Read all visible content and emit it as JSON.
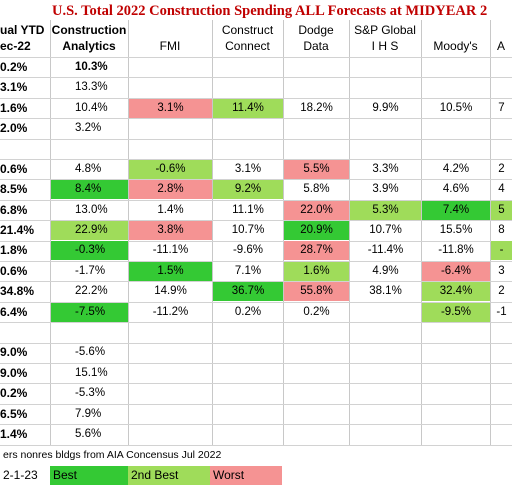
{
  "title": "U.S. Total 2022 Construction Spending ALL Forecasts at MIDYEAR 2",
  "headers": {
    "c0": [
      "ual YTD",
      "ec-22"
    ],
    "c1": [
      "Construction",
      "Analytics"
    ],
    "c2": [
      "",
      "FMI"
    ],
    "c3": [
      "Construct",
      "Connect"
    ],
    "c4": [
      "Dodge",
      "Data"
    ],
    "c5": [
      "S&P Global",
      "I H S"
    ],
    "c6": [
      "",
      "Moody's"
    ],
    "c7": [
      "",
      "A"
    ]
  },
  "rows": [
    {
      "c0": "0.2%",
      "c1": "10.3%",
      "c1bold": true,
      "cells": [
        "",
        "",
        "",
        "",
        "",
        ""
      ]
    },
    {
      "c0": "3.1%",
      "c1": "13.3%",
      "c1bold": false,
      "cells": [
        "",
        "",
        "",
        "",
        "",
        ""
      ]
    },
    {
      "c0": "1.6%",
      "c1": "10.4%",
      "c1bold": false,
      "cells": [
        "3.1%",
        "11.4%",
        "18.2%",
        "9.9%",
        "10.5%",
        "7"
      ],
      "hl": [
        "worst",
        "second",
        "",
        "",
        "",
        ""
      ]
    },
    {
      "c0": "2.0%",
      "c1": "3.2%",
      "c1bold": false,
      "cells": [
        "",
        "",
        "",
        "",
        "",
        ""
      ]
    },
    {
      "c0": "",
      "c1": "",
      "c1bold": false,
      "cells": [
        "",
        "",
        "",
        "",
        "",
        ""
      ]
    },
    {
      "c0": "0.6%",
      "c1": "4.8%",
      "c1bold": false,
      "cells": [
        "-0.6%",
        "3.1%",
        "5.5%",
        "3.3%",
        "4.2%",
        "2"
      ],
      "hl": [
        "second",
        "",
        "worst",
        "",
        "",
        ""
      ]
    },
    {
      "c0": "8.5%",
      "c1": "8.4%",
      "c1bold": false,
      "hl1": "best",
      "cells": [
        "2.8%",
        "9.2%",
        "5.8%",
        "3.9%",
        "4.6%",
        "4"
      ],
      "hl": [
        "worst",
        "second",
        "",
        "",
        "",
        ""
      ]
    },
    {
      "c0": "6.8%",
      "c1": "13.0%",
      "c1bold": false,
      "cells": [
        "1.4%",
        "11.1%",
        "22.0%",
        "5.3%",
        "7.4%",
        "5"
      ],
      "hl": [
        "",
        "",
        "worst",
        "second",
        "best",
        "second"
      ]
    },
    {
      "c0": "21.4%",
      "c1": "22.9%",
      "c1bold": false,
      "hl1": "second",
      "cells": [
        "3.8%",
        "10.7%",
        "20.9%",
        "10.7%",
        "15.5%",
        "8"
      ],
      "hl": [
        "worst",
        "",
        "best",
        "",
        "",
        ""
      ]
    },
    {
      "c0": "1.8%",
      "c1": "-0.3%",
      "c1bold": false,
      "hl1": "best",
      "cells": [
        "-11.1%",
        "-9.6%",
        "28.7%",
        "-11.4%",
        "-11.8%",
        "-"
      ],
      "hl": [
        "",
        "",
        "worst",
        "",
        "",
        "second"
      ]
    },
    {
      "c0": "0.6%",
      "c1": "-1.7%",
      "c1bold": false,
      "cells": [
        "1.5%",
        "7.1%",
        "1.6%",
        "4.9%",
        "-6.4%",
        "3"
      ],
      "hl": [
        "best",
        "",
        "second",
        "",
        "worst",
        ""
      ]
    },
    {
      "c0": "34.8%",
      "c1": "22.2%",
      "c1bold": false,
      "cells": [
        "14.9%",
        "36.7%",
        "55.8%",
        "38.1%",
        "32.4%",
        "2"
      ],
      "hl": [
        "",
        "best",
        "worst",
        "",
        "second",
        ""
      ]
    },
    {
      "c0": "6.4%",
      "c1": "-7.5%",
      "c1bold": false,
      "hl1": "best",
      "cells": [
        "-11.2%",
        "0.2%",
        "0.2%",
        "",
        "-9.5%",
        "-1"
      ],
      "hl": [
        "",
        "",
        "",
        "",
        "second",
        ""
      ]
    },
    {
      "c0": "",
      "c1": "",
      "c1bold": false,
      "cells": [
        "",
        "",
        "",
        "",
        "",
        ""
      ]
    },
    {
      "c0": "9.0%",
      "c1": "-5.6%",
      "c1bold": false,
      "cells": [
        "",
        "",
        "",
        "",
        "",
        ""
      ]
    },
    {
      "c0": "9.0%",
      "c1": "15.1%",
      "c1bold": false,
      "cells": [
        "",
        "",
        "",
        "",
        "",
        ""
      ]
    },
    {
      "c0": "0.2%",
      "c1": "-5.3%",
      "c1bold": false,
      "cells": [
        "",
        "",
        "",
        "",
        "",
        ""
      ]
    },
    {
      "c0": "6.5%",
      "c1": "7.9%",
      "c1bold": false,
      "cells": [
        "",
        "",
        "",
        "",
        "",
        ""
      ]
    },
    {
      "c0": "1.4%",
      "c1": "5.6%",
      "c1bold": false,
      "cells": [
        "",
        "",
        "",
        "",
        "",
        ""
      ]
    }
  ],
  "footnote": "ers nonres bldgs from AIA Concensus Jul 2022",
  "date": "2-1-23",
  "legend": {
    "best": "Best",
    "second": "2nd Best",
    "worst": "Worst"
  },
  "colors": {
    "title": "#c00000",
    "best": "#34c934",
    "second": "#9fdc5a",
    "worst": "#f59393"
  }
}
